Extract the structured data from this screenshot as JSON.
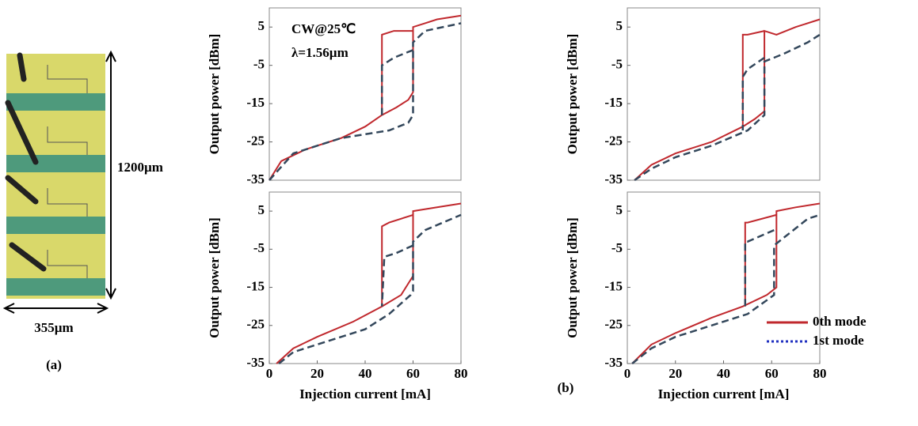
{
  "micrograph": {
    "height_label": "1200µm",
    "width_label": "355µm",
    "label": "(a)"
  },
  "panel_label": "(b)",
  "chart_data": [
    {
      "type": "line",
      "ylabel": "Output power [dBm]",
      "annotations": [
        "CW@25℃",
        "λ=1.56µm"
      ],
      "xlim": [
        0,
        80
      ],
      "ylim": [
        -35,
        10
      ],
      "yticks": [
        5,
        -5,
        -15,
        -25,
        -35
      ],
      "series": [
        {
          "color": "#c0282d",
          "x": [
            0,
            5,
            15,
            30,
            40,
            47,
            53,
            58,
            60,
            60,
            65,
            70,
            80,
            null,
            60,
            52,
            47,
            47
          ],
          "values": [
            -35,
            -30,
            -27,
            -24,
            -21,
            -18,
            -16,
            -14,
            -12,
            5,
            6,
            7,
            8,
            null,
            4,
            4,
            3,
            -18
          ]
        },
        {
          "color": "#33475b",
          "x": [
            0,
            10,
            30,
            50,
            58,
            60,
            60,
            65,
            80,
            null,
            60,
            52,
            47,
            47
          ],
          "values": [
            -35,
            -28,
            -24,
            -22,
            -20,
            -18,
            1,
            4,
            6,
            null,
            -1,
            -3,
            -5,
            -18
          ]
        }
      ]
    },
    {
      "type": "line",
      "ylabel": "Output power [dBm]",
      "xlim": [
        0,
        80
      ],
      "ylim": [
        -35,
        10
      ],
      "yticks": [
        5,
        -5,
        -15,
        -25,
        -35
      ],
      "series": [
        {
          "color": "#c0282d",
          "x": [
            3,
            10,
            20,
            35,
            48,
            53,
            57,
            57,
            62,
            70,
            80,
            null,
            57,
            50,
            48,
            48
          ],
          "values": [
            -35,
            -31,
            -28,
            -25,
            -21,
            -19,
            -17,
            4,
            3,
            5,
            7,
            null,
            4,
            3,
            3,
            -21
          ]
        },
        {
          "color": "#33475b",
          "x": [
            3,
            10,
            20,
            35,
            50,
            57,
            57,
            65,
            75,
            80,
            null,
            57,
            50,
            48,
            48
          ],
          "values": [
            -35,
            -32,
            -29,
            -26,
            -22,
            -18,
            -4,
            -2,
            1,
            3,
            null,
            -3,
            -6,
            -8,
            -22
          ]
        }
      ]
    },
    {
      "type": "line",
      "ylabel": "Output power [dBm]",
      "xlabel": "Injection current [mA]",
      "xlim": [
        0,
        80
      ],
      "ylim": [
        -35,
        10
      ],
      "xticks": [
        0,
        20,
        40,
        60,
        80
      ],
      "yticks": [
        5,
        -5,
        -15,
        -25,
        -35
      ],
      "series": [
        {
          "color": "#c0282d",
          "x": [
            3,
            10,
            20,
            35,
            47,
            55,
            59,
            60,
            60,
            70,
            80,
            null,
            60,
            50,
            47,
            47
          ],
          "values": [
            -35,
            -31,
            -28,
            -24,
            -20,
            -17,
            -13,
            -12,
            5,
            6,
            7,
            null,
            4,
            2,
            1,
            -20
          ]
        },
        {
          "color": "#33475b",
          "x": [
            4,
            10,
            20,
            40,
            50,
            59,
            60,
            60,
            65,
            80,
            null,
            60,
            53,
            48,
            47
          ],
          "values": [
            -35,
            -32,
            -30,
            -26,
            -22,
            -17,
            -16,
            -3,
            0,
            4,
            null,
            -4,
            -6,
            -7,
            -20
          ]
        }
      ]
    },
    {
      "type": "line",
      "ylabel": "Output power [dBm]",
      "xlabel": "Injection current [mA]",
      "xlim": [
        0,
        80
      ],
      "ylim": [
        -35,
        10
      ],
      "xticks": [
        0,
        20,
        40,
        60,
        80
      ],
      "yticks": [
        5,
        -5,
        -15,
        -25,
        -35
      ],
      "legend": "lower right",
      "series": [
        {
          "name": "0th mode",
          "color": "#c0282d",
          "x": [
            2,
            10,
            20,
            35,
            48,
            58,
            62,
            62,
            70,
            80,
            null,
            62,
            50,
            49,
            49
          ],
          "values": [
            -35,
            -30,
            -27,
            -23,
            -20,
            -17,
            -15,
            5,
            6,
            7,
            null,
            4,
            2,
            2,
            -20
          ]
        },
        {
          "name": "1st mode",
          "color": "#33475b",
          "x": [
            2,
            10,
            20,
            35,
            50,
            61,
            61,
            65,
            75,
            80,
            null,
            61,
            50,
            49,
            49
          ],
          "values": [
            -35,
            -31,
            -28,
            -25,
            -22,
            -17,
            -4,
            -2,
            3,
            4,
            null,
            0,
            -3,
            -3,
            -20
          ]
        }
      ]
    }
  ]
}
